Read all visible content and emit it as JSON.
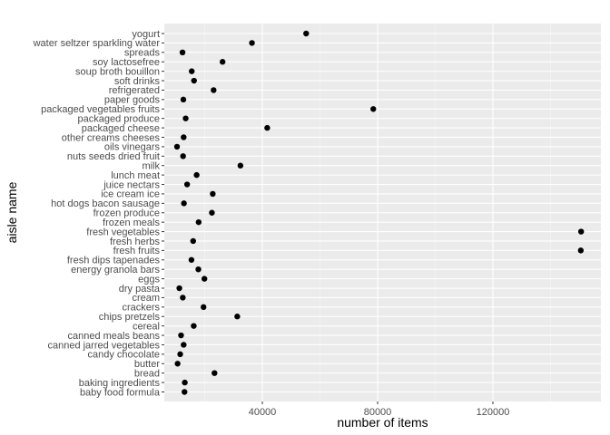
{
  "chart_data": {
    "type": "scatter",
    "xlabel": "number of items",
    "ylabel": "aisle name",
    "xlim": [
      0,
      150000
    ],
    "x_ticks": [
      40000,
      80000,
      120000
    ],
    "x_tick_labels": [
      "40000",
      "80000",
      "120000"
    ],
    "grid": true,
    "categories": [
      "baby food formula",
      "baking ingredients",
      "bread",
      "butter",
      "candy chocolate",
      "canned jarred vegetables",
      "canned meals beans",
      "cereal",
      "chips pretzels",
      "crackers",
      "cream",
      "dry pasta",
      "eggs",
      "energy granola bars",
      "fresh dips tapenades",
      "fresh fruits",
      "fresh herbs",
      "fresh vegetables",
      "frozen meals",
      "frozen produce",
      "hot dogs bacon sausage",
      "ice cream ice",
      "juice nectars",
      "lunch meat",
      "milk",
      "nuts seeds dried fruit",
      "oils vinegars",
      "other creams cheeses",
      "packaged cheese",
      "packaged produce",
      "packaged vegetables fruits",
      "paper goods",
      "refrigerated",
      "soft drinks",
      "soup broth bouillon",
      "soy lactosefree",
      "spreads",
      "water seltzer sparkling water",
      "yogurt"
    ],
    "values": [
      13000,
      13100,
      23400,
      10600,
      11500,
      12700,
      11800,
      16200,
      31300,
      19600,
      12400,
      11200,
      19900,
      17800,
      15400,
      150500,
      16000,
      150600,
      17900,
      22500,
      12800,
      22800,
      13900,
      17200,
      32400,
      12500,
      10400,
      12700,
      41700,
      13400,
      78500,
      12600,
      23100,
      16300,
      15500,
      26200,
      12300,
      36400,
      55200
    ]
  }
}
